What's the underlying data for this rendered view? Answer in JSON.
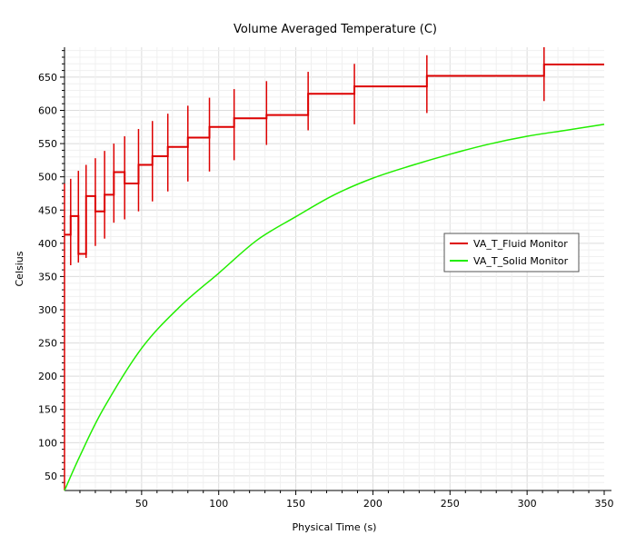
{
  "chart_data": {
    "type": "line",
    "title": "Volume Averaged Temperature (C)",
    "xlabel": "Physical Time (s)",
    "ylabel": "Celsius",
    "xlim": [
      0,
      350
    ],
    "ylim": [
      28,
      695
    ],
    "xticks": [
      50,
      100,
      150,
      200,
      250,
      300,
      350
    ],
    "yticks": [
      50,
      100,
      150,
      200,
      250,
      300,
      350,
      400,
      450,
      500,
      550,
      600,
      650
    ],
    "grid": true,
    "legend_position": "right",
    "series": [
      {
        "name": "VA_T_Fluid Monitor",
        "color": "#dd0000",
        "style": "step-with-spikes",
        "steps": [
          {
            "t0": 0,
            "t1": 4,
            "value": 413,
            "spike_low": 355,
            "spike_high": 490
          },
          {
            "t0": 4,
            "t1": 9,
            "value": 441,
            "spike_low": 367,
            "spike_high": 497
          },
          {
            "t0": 9,
            "t1": 14,
            "value": 384,
            "spike_low": 371,
            "spike_high": 509
          },
          {
            "t0": 14,
            "t1": 20,
            "value": 471,
            "spike_low": 378,
            "spike_high": 518
          },
          {
            "t0": 20,
            "t1": 26,
            "value": 448,
            "spike_low": 396,
            "spike_high": 528
          },
          {
            "t0": 26,
            "t1": 32,
            "value": 473,
            "spike_low": 407,
            "spike_high": 539
          },
          {
            "t0": 32,
            "t1": 39,
            "value": 507,
            "spike_low": 431,
            "spike_high": 550
          },
          {
            "t0": 39,
            "t1": 48,
            "value": 490,
            "spike_low": 436,
            "spike_high": 561
          },
          {
            "t0": 48,
            "t1": 57,
            "value": 518,
            "spike_low": 448,
            "spike_high": 572
          },
          {
            "t0": 57,
            "t1": 67,
            "value": 531,
            "spike_low": 463,
            "spike_high": 584
          },
          {
            "t0": 67,
            "t1": 80,
            "value": 545,
            "spike_low": 478,
            "spike_high": 595
          },
          {
            "t0": 80,
            "t1": 94,
            "value": 559,
            "spike_low": 493,
            "spike_high": 607
          },
          {
            "t0": 94,
            "t1": 110,
            "value": 575,
            "spike_low": 508,
            "spike_high": 619
          },
          {
            "t0": 110,
            "t1": 131,
            "value": 588,
            "spike_low": 525,
            "spike_high": 632
          },
          {
            "t0": 131,
            "t1": 158,
            "value": 593,
            "spike_low": 548,
            "spike_high": 644
          },
          {
            "t0": 158,
            "t1": 188,
            "value": 625,
            "spike_low": 570,
            "spike_high": 658
          },
          {
            "t0": 188,
            "t1": 235,
            "value": 636,
            "spike_low": 579,
            "spike_high": 670
          },
          {
            "t0": 235,
            "t1": 311,
            "value": 652,
            "spike_low": 596,
            "spike_high": 683
          },
          {
            "t0": 311,
            "t1": 350,
            "value": 669,
            "spike_low": 614,
            "spike_high": 695
          }
        ]
      },
      {
        "name": "VA_T_Solid Monitor",
        "color": "#22ee00",
        "style": "line",
        "points": [
          [
            0,
            28
          ],
          [
            10,
            80
          ],
          [
            25,
            150
          ],
          [
            50,
            242
          ],
          [
            75,
            305
          ],
          [
            100,
            355
          ],
          [
            125,
            405
          ],
          [
            150,
            440
          ],
          [
            175,
            473
          ],
          [
            200,
            498
          ],
          [
            225,
            517
          ],
          [
            250,
            534
          ],
          [
            275,
            549
          ],
          [
            300,
            561
          ],
          [
            325,
            570
          ],
          [
            350,
            579
          ]
        ]
      }
    ]
  }
}
